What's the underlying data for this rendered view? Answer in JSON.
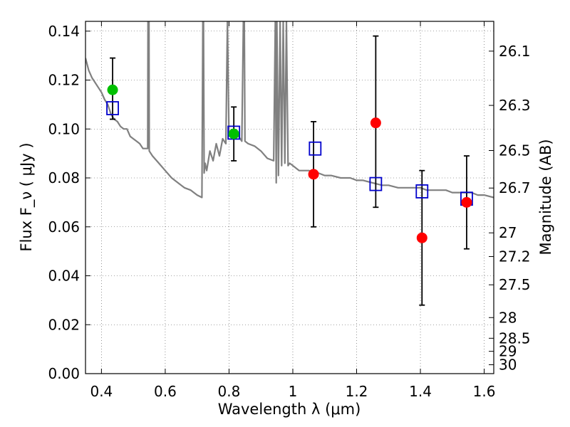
{
  "chart_data": {
    "type": "scatter",
    "title": "",
    "xlabel": "Wavelength  λ (μm)",
    "ylabel": "Flux  F_ν  ( μJy )",
    "y2label": "Magnitude (AB)",
    "xlim": [
      0.35,
      1.63
    ],
    "ylim": [
      0.0,
      0.144
    ],
    "grid": true,
    "x_ticks": [
      0.4,
      0.6,
      0.8,
      1.0,
      1.2,
      1.4,
      1.6
    ],
    "x_tick_labels": [
      "0.4",
      "0.6",
      "0.8",
      "1",
      "1.2",
      "1.4",
      "1.6"
    ],
    "y_ticks": [
      0.0,
      0.02,
      0.04,
      0.06,
      0.08,
      0.1,
      0.12,
      0.14
    ],
    "y_tick_labels": [
      "0.00",
      "0.02",
      "0.04",
      "0.06",
      "0.08",
      "0.10",
      "0.12",
      "0.14"
    ],
    "y2_ticks": [
      "26.1",
      "26.3",
      "26.5",
      "26.7",
      "27",
      "27.2",
      "27.5",
      "28",
      "28.5",
      "29",
      "30"
    ],
    "colors": {
      "model": "#808080",
      "green": "#00c000",
      "red": "#ff0000",
      "square": "#0000cc",
      "errorbar": "#000000"
    },
    "series": [
      {
        "name": "model spectrum",
        "style": "line",
        "x": [
          0.35,
          0.36,
          0.37,
          0.38,
          0.39,
          0.4,
          0.41,
          0.42,
          0.43,
          0.44,
          0.45,
          0.46,
          0.47,
          0.48,
          0.49,
          0.5,
          0.51,
          0.52,
          0.53,
          0.545,
          0.546,
          0.548,
          0.549,
          0.55,
          0.56,
          0.58,
          0.6,
          0.62,
          0.64,
          0.66,
          0.68,
          0.7,
          0.715,
          0.718,
          0.72,
          0.722,
          0.725,
          0.73,
          0.74,
          0.75,
          0.76,
          0.77,
          0.78,
          0.79,
          0.795,
          0.8,
          0.81,
          0.82,
          0.83,
          0.84,
          0.845,
          0.848,
          0.85,
          0.86,
          0.88,
          0.9,
          0.92,
          0.94,
          0.945,
          0.948,
          0.95,
          0.955,
          0.96,
          0.965,
          0.97,
          0.975,
          0.98,
          0.985,
          0.99,
          1.0,
          1.02,
          1.05,
          1.08,
          1.1,
          1.12,
          1.15,
          1.18,
          1.2,
          1.22,
          1.25,
          1.28,
          1.3,
          1.33,
          1.36,
          1.38,
          1.4,
          1.42,
          1.44,
          1.46,
          1.48,
          1.5,
          1.52,
          1.54,
          1.56,
          1.58,
          1.6,
          1.63
        ],
        "y": [
          0.129,
          0.124,
          0.121,
          0.119,
          0.117,
          0.115,
          0.112,
          0.11,
          0.106,
          0.104,
          0.103,
          0.101,
          0.1,
          0.1,
          0.097,
          0.096,
          0.095,
          0.094,
          0.092,
          0.092,
          0.144,
          0.144,
          0.144,
          0.091,
          0.089,
          0.086,
          0.083,
          0.08,
          0.078,
          0.076,
          0.075,
          0.073,
          0.072,
          0.144,
          0.144,
          0.082,
          0.086,
          0.083,
          0.091,
          0.087,
          0.094,
          0.089,
          0.096,
          0.094,
          0.144,
          0.097,
          0.098,
          0.098,
          0.097,
          0.095,
          0.144,
          0.144,
          0.095,
          0.094,
          0.093,
          0.091,
          0.088,
          0.087,
          0.144,
          0.078,
          0.144,
          0.081,
          0.144,
          0.085,
          0.144,
          0.086,
          0.144,
          0.085,
          0.086,
          0.085,
          0.083,
          0.083,
          0.082,
          0.081,
          0.081,
          0.08,
          0.08,
          0.079,
          0.079,
          0.078,
          0.077,
          0.077,
          0.076,
          0.076,
          0.076,
          0.076,
          0.075,
          0.075,
          0.075,
          0.075,
          0.074,
          0.074,
          0.074,
          0.074,
          0.073,
          0.073,
          0.072
        ]
      },
      {
        "name": "observed (green)",
        "style": "points",
        "x": [
          0.435,
          0.815
        ],
        "y": [
          0.116,
          0.098
        ],
        "yerr_low": [
          0.104,
          0.087
        ],
        "yerr_high": [
          0.129,
          0.109
        ]
      },
      {
        "name": "observed (red)",
        "style": "points",
        "x": [
          1.065,
          1.26,
          1.405,
          1.545
        ],
        "y": [
          0.0815,
          0.1025,
          0.0555,
          0.07
        ],
        "yerr_low": [
          0.06,
          0.068,
          0.028,
          0.051
        ],
        "yerr_high": [
          0.103,
          0.138,
          0.083,
          0.089
        ]
      },
      {
        "name": "model synthetic photometry",
        "style": "squares",
        "x": [
          0.435,
          0.815,
          1.07,
          1.26,
          1.405,
          1.545
        ],
        "y": [
          0.1085,
          0.0985,
          0.092,
          0.0775,
          0.0745,
          0.0715
        ]
      }
    ]
  }
}
